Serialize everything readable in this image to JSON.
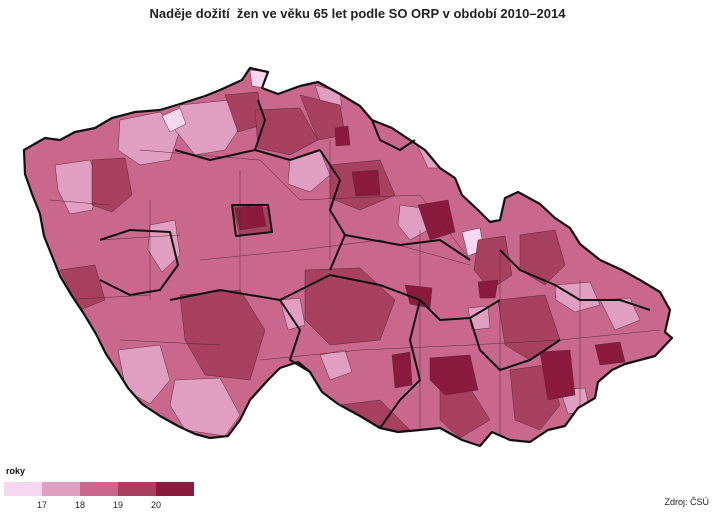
{
  "title": "Naděje dožití  žen ve věku 65 let podle SO ORP v období 2010–2014",
  "source": "Zdroj: ČSÚ",
  "legend": {
    "title": "roky",
    "classes": [
      {
        "color": "#f7d6f0"
      },
      {
        "color": "#e09ec0"
      },
      {
        "color": "#c9688c"
      },
      {
        "color": "#a8405f"
      },
      {
        "color": "#8a1a3e"
      }
    ],
    "ticks": [
      "17",
      "18",
      "19",
      "20"
    ]
  },
  "map": {
    "background": "#c9688c",
    "border_color": "#111111",
    "inner_border_color": "#5a2a3a"
  }
}
